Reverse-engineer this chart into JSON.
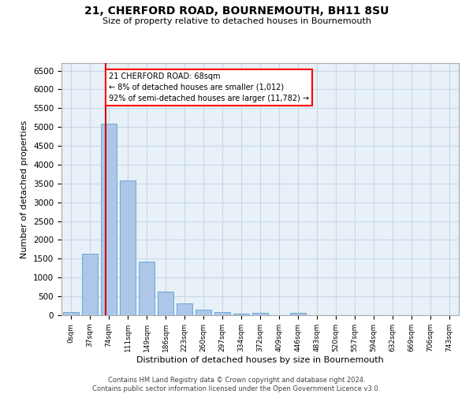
{
  "title1": "21, CHERFORD ROAD, BOURNEMOUTH, BH11 8SU",
  "title2": "Size of property relative to detached houses in Bournemouth",
  "xlabel": "Distribution of detached houses by size in Bournemouth",
  "ylabel": "Number of detached properties",
  "categories": [
    "0sqm",
    "37sqm",
    "74sqm",
    "111sqm",
    "149sqm",
    "186sqm",
    "223sqm",
    "260sqm",
    "297sqm",
    "334sqm",
    "372sqm",
    "409sqm",
    "446sqm",
    "483sqm",
    "520sqm",
    "557sqm",
    "594sqm",
    "632sqm",
    "669sqm",
    "706sqm",
    "743sqm"
  ],
  "values": [
    75,
    1630,
    5080,
    3590,
    1420,
    620,
    305,
    155,
    80,
    50,
    60,
    0,
    60,
    0,
    0,
    0,
    0,
    0,
    0,
    0,
    0
  ],
  "bar_color": "#aec6e8",
  "bar_edge_color": "#6aaad4",
  "vline_pos": 1.84,
  "vline_color": "#cc0000",
  "annotation_title": "21 CHERFORD ROAD: 68sqm",
  "annotation_line1": "← 8% of detached houses are smaller (1,012)",
  "annotation_line2": "92% of semi-detached houses are larger (11,782) →",
  "ylim": [
    0,
    6700
  ],
  "yticks": [
    0,
    500,
    1000,
    1500,
    2000,
    2500,
    3000,
    3500,
    4000,
    4500,
    5000,
    5500,
    6000,
    6500
  ],
  "grid_color": "#c8d8e8",
  "bg_color": "#e8f0f8",
  "footer1": "Contains HM Land Registry data © Crown copyright and database right 2024.",
  "footer2": "Contains public sector information licensed under the Open Government Licence v3.0."
}
